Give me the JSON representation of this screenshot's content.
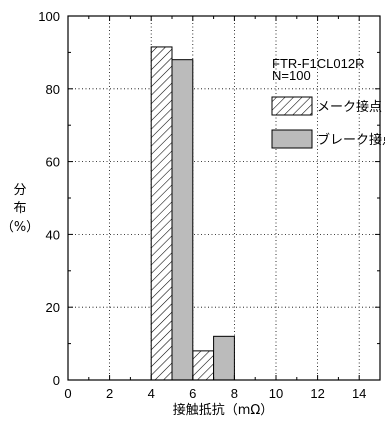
{
  "chart_data": {
    "type": "bar",
    "bin_width": 1,
    "series": [
      {
        "name": "メーク接点",
        "pattern": "hatch",
        "bins": [
          {
            "x": 4,
            "value": 91.5
          },
          {
            "x": 6,
            "value": 8
          }
        ]
      },
      {
        "name": "ブレーク接点",
        "pattern": "gray",
        "bins": [
          {
            "x": 5,
            "value": 88
          },
          {
            "x": 7,
            "value": 12
          }
        ]
      }
    ],
    "annotation": [
      "FTR-F1CL012R",
      "N=100"
    ],
    "xlabel": "接触抵抗（mΩ）",
    "ylabel": [
      "分",
      "布",
      "（%）"
    ],
    "xlim": [
      0,
      15
    ],
    "ylim": [
      0,
      100
    ],
    "xticks": [
      "0",
      "2",
      "4",
      "6",
      "8",
      "10",
      "12",
      "14"
    ],
    "yticks": [
      "0",
      "20",
      "40",
      "60",
      "80",
      "100"
    ],
    "grid": "dotted",
    "legend_position": "top-right",
    "bar_color": "#bbbbbb"
  }
}
